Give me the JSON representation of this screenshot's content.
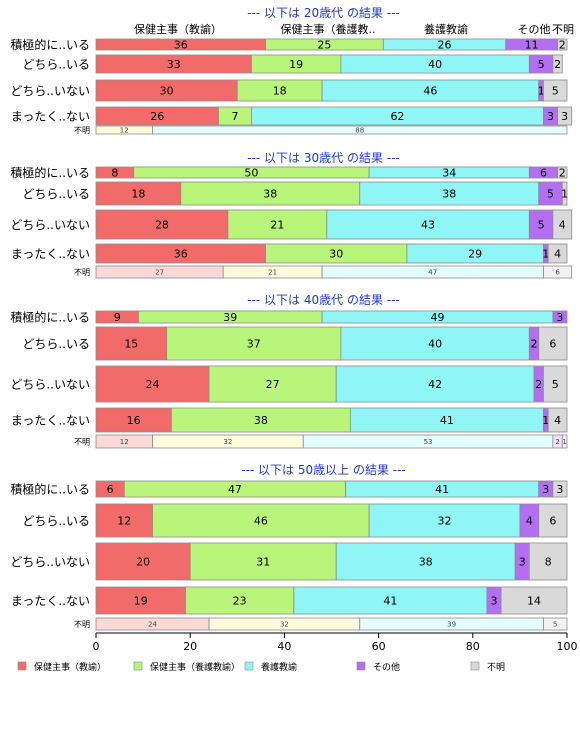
{
  "column_headers": [
    "保健主事（教諭）",
    "保健主事（養護教..",
    "養護教諭",
    "その他",
    "不明"
  ],
  "legend": [
    {
      "label": "保健主事（教諭）",
      "color": "#f26b6b"
    },
    {
      "label": "保健主事（養護教諭）",
      "color": "#b8f57a"
    },
    {
      "label": "養護教諭",
      "color": "#8ff5f5"
    },
    {
      "label": "その他",
      "color": "#b46ef2"
    },
    {
      "label": "不明",
      "color": "#d9d9d9"
    }
  ],
  "chart_data": {
    "type": "bar",
    "orientation": "horizontal",
    "stacked": true,
    "xlim": [
      0,
      100
    ],
    "xticks": [
      0,
      20,
      40,
      60,
      80,
      100
    ],
    "series_names": [
      "保健主事（教諭）",
      "保健主事（養護教諭）",
      "養護教諭",
      "その他",
      "不明"
    ],
    "colors": [
      "#f26b6b",
      "#b8f57a",
      "#8ff5f5",
      "#b46ef2",
      "#d9d9d9"
    ],
    "unknown_colors": [
      "#fbd9d9",
      "#fffbdc",
      "#e4fdfd",
      "#f0e0fc",
      "#f2f2f2"
    ],
    "panels": [
      {
        "title": "--- 以下は 20歳代 の結果 ---",
        "rows": [
          {
            "label": "積極的に..いる",
            "values": [
              36,
              25,
              26,
              11,
              2
            ]
          },
          {
            "label": "どちら..いる",
            "values": [
              33,
              19,
              40,
              5,
              2
            ]
          },
          {
            "label": "どちら..いない",
            "values": [
              30,
              18,
              46,
              1,
              5
            ]
          },
          {
            "label": "まったく..ない",
            "values": [
              26,
              7,
              62,
              3,
              3
            ]
          }
        ],
        "unknown": {
          "label": "不明",
          "values": [
            0,
            12,
            88,
            0,
            0
          ]
        }
      },
      {
        "title": "--- 以下は 30歳代 の結果 ---",
        "rows": [
          {
            "label": "積極的に..いる",
            "values": [
              8,
              50,
              34,
              6,
              2
            ]
          },
          {
            "label": "どちら..いる",
            "values": [
              18,
              38,
              38,
              5,
              1
            ]
          },
          {
            "label": "どちら..いない",
            "values": [
              28,
              21,
              43,
              5,
              4
            ]
          },
          {
            "label": "まったく..ない",
            "values": [
              36,
              30,
              29,
              1,
              4
            ]
          }
        ],
        "unknown": {
          "label": "不明",
          "values": [
            27,
            21,
            47,
            0,
            6
          ]
        }
      },
      {
        "title": "--- 以下は 40歳代 の結果 ---",
        "rows": [
          {
            "label": "積極的に..いる",
            "values": [
              9,
              39,
              49,
              3,
              0
            ]
          },
          {
            "label": "どちら..いる",
            "values": [
              15,
              37,
              40,
              2,
              6
            ]
          },
          {
            "label": "どちら..いない",
            "values": [
              24,
              27,
              42,
              2,
              5
            ]
          },
          {
            "label": "まったく..ない",
            "values": [
              16,
              38,
              41,
              1,
              4
            ]
          }
        ],
        "unknown": {
          "label": "不明",
          "values": [
            12,
            32,
            53,
            2,
            1
          ]
        }
      },
      {
        "title": "--- 以下は 50歳以上 の結果 ---",
        "rows": [
          {
            "label": "積極的に..いる",
            "values": [
              6,
              47,
              41,
              3,
              3
            ]
          },
          {
            "label": "どちら..いる",
            "values": [
              12,
              46,
              32,
              4,
              6
            ]
          },
          {
            "label": "どちら..いない",
            "values": [
              20,
              31,
              38,
              3,
              8
            ]
          },
          {
            "label": "まったく..ない",
            "values": [
              19,
              23,
              41,
              3,
              14
            ]
          }
        ],
        "unknown": {
          "label": "不明",
          "values": [
            24,
            32,
            39,
            0,
            5
          ]
        }
      }
    ]
  }
}
